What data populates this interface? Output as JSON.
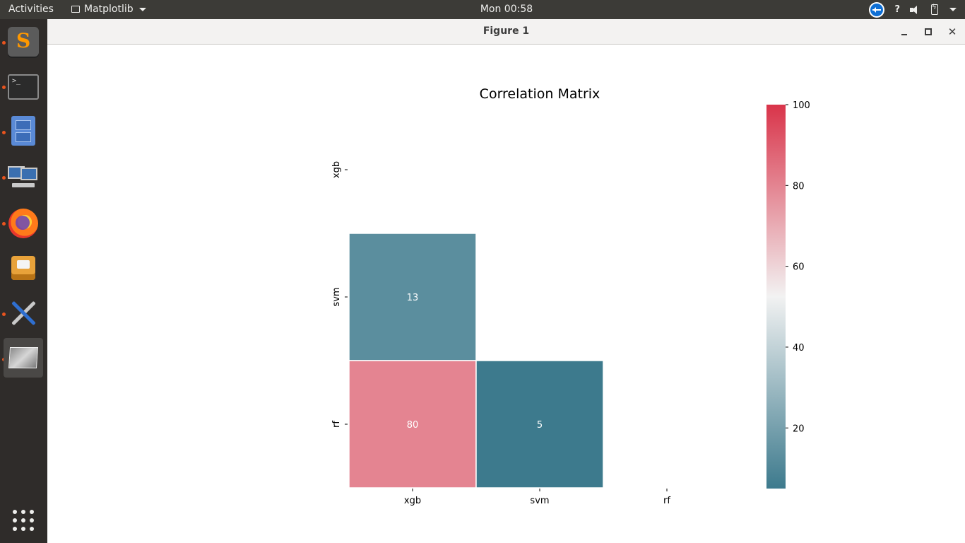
{
  "topbar": {
    "activities": "Activities",
    "app_menu": "Matplotlib",
    "clock": "Mon 00:58",
    "help": "?"
  },
  "dock": {
    "items": [
      {
        "name": "sublime-text-icon",
        "running": true
      },
      {
        "name": "terminal-icon",
        "running": true
      },
      {
        "name": "files-icon",
        "running": true
      },
      {
        "name": "remote-desktop-icon",
        "running": true
      },
      {
        "name": "firefox-icon",
        "running": true
      },
      {
        "name": "software-installer-icon",
        "running": false
      },
      {
        "name": "tools-icon",
        "running": true
      },
      {
        "name": "figure-window-icon",
        "running": true
      },
      {
        "name": "show-applications-icon",
        "running": false
      }
    ]
  },
  "window": {
    "title": "Figure 1"
  },
  "chart_data": {
    "type": "heatmap",
    "title": "Correlation Matrix",
    "rows": [
      "xgb",
      "svm",
      "rf"
    ],
    "columns": [
      "xgb",
      "svm",
      "rf"
    ],
    "cells": [
      {
        "row": "svm",
        "col": "xgb",
        "value": 13
      },
      {
        "row": "rf",
        "col": "xgb",
        "value": 80
      },
      {
        "row": "rf",
        "col": "svm",
        "value": 5
      }
    ],
    "mask": "upper triangle including diagonal",
    "colorbar": {
      "min": 5,
      "max": 100,
      "ticks": [
        20,
        40,
        60,
        80,
        100
      ],
      "colors": {
        "low": "#3d7a8d",
        "mid": "#f2f2f2",
        "high": "#d9344a"
      }
    },
    "annotation_color": "#ffffff",
    "cell_border_color": "#ffffff"
  }
}
